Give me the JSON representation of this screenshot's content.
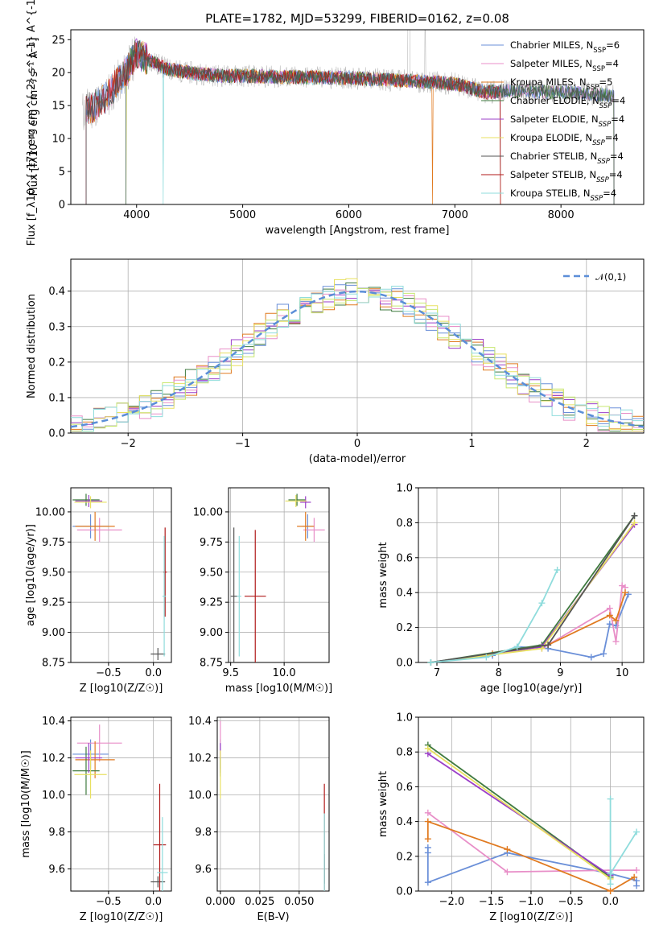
{
  "colors": {
    "c0": "#6a8fd8",
    "c1": "#e88fc8",
    "c2": "#e07a20",
    "c3": "#3f7a3f",
    "c4": "#9b3fc8",
    "c5": "#e8e060",
    "c6": "#555555",
    "c7": "#b01a1a",
    "c8": "#8fdcdc",
    "c9": "#c8e870",
    "grid": "#b0b0b0",
    "normal": "#5b8ed8",
    "gray": "#bbbbbb"
  },
  "chart_data": [
    {
      "id": "spectrum",
      "type": "line",
      "title": "PLATE=1782, MJD=53299, FIBERID=0162, z=0.08",
      "xlabel": "wavelength [Angstrom, rest frame]",
      "ylabel": "Flux [f_λ10^{-17} erg cm^{-2} s^{-1} A^{-1}]",
      "xlim": [
        3380,
        8780
      ],
      "ylim": [
        0,
        26.5
      ],
      "xticks": [
        4000,
        5000,
        6000,
        7000,
        8000
      ],
      "yticks": [
        0,
        5,
        10,
        15,
        20,
        25
      ],
      "legend_position": "top-right",
      "legend": [
        {
          "name": "Chabrier MILES",
          "nssp": "6",
          "color": "c0"
        },
        {
          "name": "Salpeter MILES",
          "nssp": "4",
          "color": "c1"
        },
        {
          "name": "Kroupa MILES",
          "nssp": "5",
          "color": "c2"
        },
        {
          "name": "Chabrier ELODIE",
          "nssp": "4",
          "color": "c3"
        },
        {
          "name": "Salpeter ELODIE",
          "nssp": "4",
          "color": "c4"
        },
        {
          "name": "Kroupa ELODIE",
          "nssp": "4",
          "color": "c5"
        },
        {
          "name": "Chabrier STELIB",
          "nssp": "4",
          "color": "c6"
        },
        {
          "name": "Salpeter STELIB",
          "nssp": "4",
          "color": "c7"
        },
        {
          "name": "Kroupa STELIB",
          "nssp": "4",
          "color": "c8"
        }
      ],
      "continuum": {
        "x": [
          3500,
          3600,
          3700,
          3800,
          3900,
          4000,
          4100,
          4300,
          4500,
          4800,
          5000,
          5500,
          6000,
          6500,
          7000,
          7300,
          7500,
          8000,
          8300,
          8500
        ],
        "y": [
          14,
          15,
          16,
          18,
          20,
          23,
          22,
          20.5,
          20,
          19.5,
          19.5,
          19.3,
          19.2,
          18.8,
          18.3,
          17,
          17.3,
          17,
          16.8,
          16.5
        ]
      }
    },
    {
      "id": "residuals",
      "type": "histogram",
      "xlabel": "(data-model)/error",
      "ylabel": "Normed distribution",
      "xlim": [
        -2.5,
        2.5
      ],
      "ylim": [
        0,
        0.49
      ],
      "xticks": [
        -2,
        -1,
        0,
        1,
        2
      ],
      "yticks": [
        0.0,
        0.1,
        0.2,
        0.3,
        0.4
      ],
      "legend_position": "top-right",
      "legend": [
        {
          "name": "𝒩(0,1)",
          "color": "normal"
        }
      ],
      "bin_width": 0.1
    },
    {
      "id": "age_vs_Z",
      "type": "scatter",
      "xlabel": "Z [log10(Z/Z☉)]",
      "ylabel": "age  [log10(age/yr)]",
      "xlim": [
        -0.92,
        0.2
      ],
      "ylim": [
        8.75,
        10.2
      ],
      "xticks": [
        -0.5,
        0.0
      ],
      "yticks": [
        8.75,
        9.0,
        9.25,
        9.5,
        9.75,
        10.0
      ],
      "points": [
        {
          "x": -0.7,
          "y": 9.88,
          "xerr": 0.2,
          "yerr": 0.1,
          "color": "c0"
        },
        {
          "x": -0.6,
          "y": 9.85,
          "xerr": 0.25,
          "yerr": 0.1,
          "color": "c1"
        },
        {
          "x": -0.65,
          "y": 9.88,
          "xerr": 0.22,
          "yerr": 0.12,
          "color": "c2"
        },
        {
          "x": -0.75,
          "y": 10.1,
          "xerr": 0.15,
          "yerr": 0.05,
          "color": "c3"
        },
        {
          "x": -0.72,
          "y": 10.09,
          "xerr": 0.15,
          "yerr": 0.05,
          "color": "c4"
        },
        {
          "x": -0.7,
          "y": 10.08,
          "xerr": 0.18,
          "yerr": 0.05,
          "color": "c5"
        },
        {
          "x": 0.05,
          "y": 8.82,
          "xerr": 0.08,
          "yerr": 0.05,
          "color": "c6"
        },
        {
          "x": 0.13,
          "y": 9.5,
          "xerr": 0.02,
          "yerr": 0.37,
          "color": "c7"
        },
        {
          "x": 0.12,
          "y": 9.3,
          "xerr": 0.02,
          "yerr": 0.5,
          "color": "c8"
        }
      ]
    },
    {
      "id": "age_vs_mass",
      "type": "scatter",
      "xlabel": "mass [log10(M/M☉)]",
      "ylabel": "",
      "xlim": [
        9.48,
        10.42
      ],
      "ylim": [
        8.75,
        10.2
      ],
      "xticks": [
        9.5,
        10.0
      ],
      "yticks": [
        8.75,
        9.0,
        9.25,
        9.5,
        9.75,
        10.0
      ],
      "points": [
        {
          "x": 10.22,
          "y": 9.88,
          "xerr": 0.05,
          "yerr": 0.1,
          "color": "c0"
        },
        {
          "x": 10.28,
          "y": 9.85,
          "xerr": 0.1,
          "yerr": 0.1,
          "color": "c1"
        },
        {
          "x": 10.2,
          "y": 9.88,
          "xerr": 0.08,
          "yerr": 0.12,
          "color": "c2"
        },
        {
          "x": 10.12,
          "y": 10.1,
          "xerr": 0.08,
          "yerr": 0.05,
          "color": "c3"
        },
        {
          "x": 10.2,
          "y": 10.08,
          "xerr": 0.05,
          "yerr": 0.05,
          "color": "c4"
        },
        {
          "x": 10.11,
          "y": 10.09,
          "xerr": 0.1,
          "yerr": 0.05,
          "color": "c5"
        },
        {
          "x": 9.53,
          "y": 9.3,
          "xerr": 0.03,
          "yerr": 0.57,
          "color": "c6"
        },
        {
          "x": 9.73,
          "y": 9.3,
          "xerr": 0.1,
          "yerr": 0.55,
          "color": "c7"
        },
        {
          "x": 9.58,
          "y": 9.3,
          "xerr": 0.02,
          "yerr": 0.5,
          "color": "c8"
        }
      ]
    },
    {
      "id": "massweight_vs_age",
      "type": "line",
      "xlabel": "age  [log10(age/yr)]",
      "ylabel": "mass weight",
      "xlim": [
        6.7,
        10.35
      ],
      "ylim": [
        0,
        1.0
      ],
      "xticks": [
        7,
        8,
        9,
        10
      ],
      "yticks": [
        0.0,
        0.2,
        0.4,
        0.6,
        0.8,
        1.0
      ],
      "series": [
        {
          "color": "c0",
          "x": [
            6.9,
            7.9,
            8.3,
            8.8,
            9.5,
            9.7,
            9.8,
            9.9,
            10.1
          ],
          "y": [
            0.0,
            0.04,
            0.09,
            0.08,
            0.03,
            0.05,
            0.22,
            0.21,
            0.39
          ]
        },
        {
          "color": "c1",
          "x": [
            8.7,
            9.8,
            9.9,
            10.0,
            10.05
          ],
          "y": [
            0.08,
            0.31,
            0.12,
            0.44,
            0.43
          ]
        },
        {
          "color": "c2",
          "x": [
            7.9,
            8.8,
            9.8,
            9.9,
            10.05
          ],
          "y": [
            0.05,
            0.1,
            0.27,
            0.24,
            0.4
          ]
        },
        {
          "color": "c3",
          "x": [
            6.9,
            8.7,
            10.2
          ],
          "y": [
            0.0,
            0.1,
            0.84
          ]
        },
        {
          "color": "c4",
          "x": [
            6.9,
            8.7,
            10.2
          ],
          "y": [
            0.0,
            0.09,
            0.79
          ]
        },
        {
          "color": "c5",
          "x": [
            6.9,
            8.7,
            10.2
          ],
          "y": [
            0.0,
            0.08,
            0.8
          ]
        },
        {
          "color": "c6",
          "x": [
            6.9,
            8.8,
            10.2
          ],
          "y": [
            0.0,
            0.1,
            0.84
          ]
        },
        {
          "color": "c8",
          "x": [
            6.9,
            7.8,
            8.3,
            8.7,
            8.95
          ],
          "y": [
            0.0,
            0.03,
            0.09,
            0.34,
            0.53
          ]
        }
      ]
    },
    {
      "id": "mass_vs_Z",
      "type": "scatter",
      "xlabel": "Z [log10(Z/Z☉)]",
      "ylabel": "mass [log10(M/M☉)]",
      "xlim": [
        -0.92,
        0.2
      ],
      "ylim": [
        9.48,
        10.42
      ],
      "xticks": [
        -0.5,
        0.0
      ],
      "yticks": [
        9.6,
        9.8,
        10.0,
        10.2,
        10.4
      ],
      "points": [
        {
          "x": -0.7,
          "y": 10.22,
          "xerr": 0.2,
          "yerr": 0.08,
          "color": "c0"
        },
        {
          "x": -0.6,
          "y": 10.28,
          "xerr": 0.25,
          "yerr": 0.1,
          "color": "c1"
        },
        {
          "x": -0.65,
          "y": 10.19,
          "xerr": 0.22,
          "yerr": 0.1,
          "color": "c2"
        },
        {
          "x": -0.75,
          "y": 10.13,
          "xerr": 0.15,
          "yerr": 0.13,
          "color": "c3"
        },
        {
          "x": -0.72,
          "y": 10.2,
          "xerr": 0.15,
          "yerr": 0.08,
          "color": "c4"
        },
        {
          "x": -0.7,
          "y": 10.11,
          "xerr": 0.18,
          "yerr": 0.13,
          "color": "c5"
        },
        {
          "x": 0.05,
          "y": 9.53,
          "xerr": 0.08,
          "yerr": 0.03,
          "color": "c6"
        },
        {
          "x": 0.07,
          "y": 9.73,
          "xerr": 0.07,
          "yerr": 0.33,
          "color": "c7"
        },
        {
          "x": 0.1,
          "y": 9.58,
          "xerr": 0.06,
          "yerr": 0.3,
          "color": "c8"
        }
      ]
    },
    {
      "id": "mass_vs_EBV",
      "type": "scatter",
      "xlabel": "E(B-V)",
      "ylabel": "",
      "xlim": [
        -0.002,
        0.069
      ],
      "ylim": [
        9.48,
        10.42
      ],
      "xticks": [
        0.0,
        0.025,
        0.05
      ],
      "xticklabels": [
        "0.000",
        "0.025",
        "0.050"
      ],
      "yticks": [
        9.6,
        9.8,
        10.0,
        10.2,
        10.4
      ],
      "points": [
        {
          "x": 0.0,
          "y": 10.22,
          "xerr": 0,
          "yerr": 0.08,
          "color": "c0"
        },
        {
          "x": 0.0,
          "y": 10.3,
          "xerr": 0,
          "yerr": 0.1,
          "color": "c1"
        },
        {
          "x": 0.0,
          "y": 10.2,
          "xerr": 0,
          "yerr": 0.08,
          "color": "c4"
        },
        {
          "x": 0.0,
          "y": 10.15,
          "xerr": 0,
          "yerr": 0.05,
          "color": "c3"
        },
        {
          "x": 0.0,
          "y": 10.11,
          "xerr": 0,
          "yerr": 0.13,
          "color": "c5"
        },
        {
          "x": 0.066,
          "y": 9.6,
          "xerr": 0,
          "yerr": 0.08,
          "color": "c6"
        },
        {
          "x": 0.066,
          "y": 9.73,
          "xerr": 0,
          "yerr": 0.33,
          "color": "c7"
        },
        {
          "x": 0.066,
          "y": 9.6,
          "xerr": 0,
          "yerr": 0.3,
          "color": "c8"
        }
      ]
    },
    {
      "id": "massweight_vs_Z",
      "type": "line",
      "xlabel": "Z [log10(Z/Z☉)]",
      "ylabel": "mass weight",
      "xlim": [
        -2.42,
        0.42
      ],
      "ylim": [
        0,
        1.0
      ],
      "xticks": [
        -2.0,
        -1.5,
        -1.0,
        -0.5,
        0.0
      ],
      "yticks": [
        0.0,
        0.2,
        0.4,
        0.6,
        0.8,
        1.0
      ],
      "series": [
        {
          "color": "c0",
          "x": [
            -2.3,
            -2.3,
            -2.3,
            -1.3,
            0.0,
            0.33,
            0.33
          ],
          "y": [
            0.25,
            0.22,
            0.05,
            0.22,
            0.1,
            0.06,
            0.03
          ]
        },
        {
          "color": "c1",
          "x": [
            -2.3,
            -1.3,
            0.0,
            0.33
          ],
          "y": [
            0.45,
            0.11,
            0.12,
            0.12
          ]
        },
        {
          "color": "c2",
          "x": [
            -2.3,
            -2.3,
            -1.3,
            0.0,
            0.3
          ],
          "y": [
            0.3,
            0.4,
            0.24,
            0.0,
            0.08
          ]
        },
        {
          "color": "c3",
          "x": [
            -2.3,
            0.0
          ],
          "y": [
            0.84,
            0.08
          ]
        },
        {
          "color": "c4",
          "x": [
            -2.3,
            0.0
          ],
          "y": [
            0.79,
            0.09
          ]
        },
        {
          "color": "c5",
          "x": [
            -2.3,
            0.0
          ],
          "y": [
            0.82,
            0.07
          ]
        },
        {
          "color": "c8",
          "x": [
            0.0,
            0.0,
            0.0,
            0.33
          ],
          "y": [
            0.53,
            0.04,
            0.1,
            0.34
          ]
        }
      ]
    }
  ]
}
